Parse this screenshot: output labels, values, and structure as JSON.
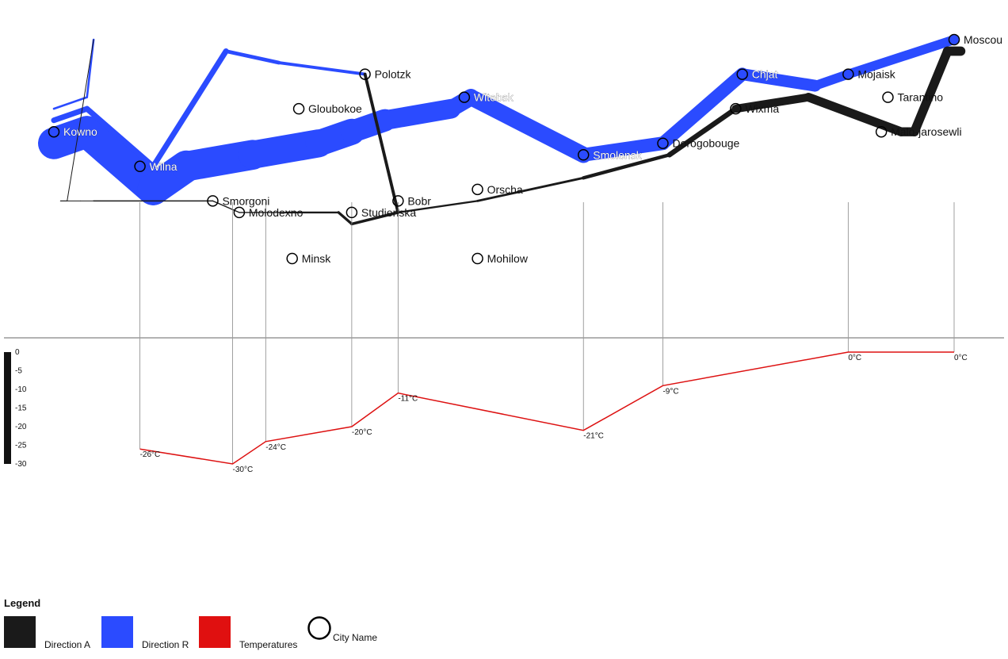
{
  "chart_data": {
    "type": "line",
    "cities": [
      {
        "name": "Kowno",
        "lon": 24.0,
        "lat": 55.0
      },
      {
        "name": "Wilna",
        "lon": 25.3,
        "lat": 54.7
      },
      {
        "name": "Smorgoni",
        "lon": 26.4,
        "lat": 54.4
      },
      {
        "name": "Molodexno",
        "lon": 26.8,
        "lat": 54.3
      },
      {
        "name": "Gloubokoe",
        "lon": 27.7,
        "lat": 55.2
      },
      {
        "name": "Minsk",
        "lon": 27.6,
        "lat": 53.9
      },
      {
        "name": "Studienska",
        "lon": 28.5,
        "lat": 54.3
      },
      {
        "name": "Polotzk",
        "lon": 28.7,
        "lat": 55.5
      },
      {
        "name": "Bobr",
        "lon": 29.2,
        "lat": 54.4
      },
      {
        "name": "Witebsk",
        "lon": 30.2,
        "lat": 55.3
      },
      {
        "name": "Orscha",
        "lon": 30.4,
        "lat": 54.5
      },
      {
        "name": "Mohilow",
        "lon": 30.4,
        "lat": 53.9
      },
      {
        "name": "Smolensk",
        "lon": 32.0,
        "lat": 54.8
      },
      {
        "name": "Dorogobouge",
        "lon": 33.2,
        "lat": 54.9
      },
      {
        "name": "Wixma",
        "lon": 34.3,
        "lat": 55.2
      },
      {
        "name": "Chjat",
        "lon": 34.4,
        "lat": 55.5
      },
      {
        "name": "Mojaisk",
        "lon": 36.0,
        "lat": 55.5
      },
      {
        "name": "Moscou",
        "lon": 37.6,
        "lat": 55.8
      },
      {
        "name": "Tarantino",
        "lon": 36.6,
        "lat": 55.3
      },
      {
        "name": "Malo-jarosewli",
        "lon": 36.5,
        "lat": 55.0
      }
    ],
    "troops": [
      {
        "direction": "R",
        "path": [
          {
            "lon": 24.0,
            "lat": 54.9,
            "size": 340000
          },
          {
            "lon": 24.5,
            "lat": 55.0,
            "size": 340000
          },
          {
            "lon": 25.5,
            "lat": 54.5,
            "size": 340000
          },
          {
            "lon": 26.0,
            "lat": 54.7,
            "size": 320000
          },
          {
            "lon": 27.0,
            "lat": 54.8,
            "size": 300000
          },
          {
            "lon": 28.0,
            "lat": 54.9,
            "size": 280000
          },
          {
            "lon": 28.5,
            "lat": 55.0,
            "size": 240000
          },
          {
            "lon": 29.0,
            "lat": 55.1,
            "size": 210000
          },
          {
            "lon": 30.0,
            "lat": 55.2,
            "size": 180000
          },
          {
            "lon": 30.3,
            "lat": 55.3,
            "size": 175000
          },
          {
            "lon": 32.0,
            "lat": 54.8,
            "size": 145000
          },
          {
            "lon": 33.2,
            "lat": 54.9,
            "size": 140000
          },
          {
            "lon": 34.4,
            "lat": 55.5,
            "size": 127100
          },
          {
            "lon": 35.5,
            "lat": 55.4,
            "size": 100000
          },
          {
            "lon": 36.0,
            "lat": 55.5,
            "size": 100000
          },
          {
            "lon": 37.6,
            "lat": 55.8,
            "size": 100000
          }
        ]
      },
      {
        "direction": "A",
        "path": [
          {
            "lon": 37.7,
            "lat": 55.7,
            "size": 100000
          },
          {
            "lon": 37.5,
            "lat": 55.7,
            "size": 98000
          },
          {
            "lon": 37.0,
            "lat": 55.0,
            "size": 97000
          },
          {
            "lon": 36.8,
            "lat": 55.0,
            "size": 96000
          },
          {
            "lon": 35.4,
            "lat": 55.3,
            "size": 87000
          },
          {
            "lon": 34.3,
            "lat": 55.2,
            "size": 55000
          },
          {
            "lon": 33.3,
            "lat": 54.8,
            "size": 37000
          },
          {
            "lon": 32.0,
            "lat": 54.6,
            "size": 24000
          },
          {
            "lon": 30.4,
            "lat": 54.4,
            "size": 20000
          },
          {
            "lon": 29.2,
            "lat": 54.3,
            "size": 20000
          },
          {
            "lon": 28.5,
            "lat": 54.2,
            "size": 20000
          },
          {
            "lon": 28.3,
            "lat": 54.3,
            "size": 20000
          },
          {
            "lon": 27.5,
            "lat": 54.3,
            "size": 12000
          },
          {
            "lon": 26.8,
            "lat": 54.3,
            "size": 12000
          },
          {
            "lon": 26.4,
            "lat": 54.4,
            "size": 12000
          },
          {
            "lon": 24.6,
            "lat": 54.4,
            "size": 8000
          },
          {
            "lon": 24.4,
            "lat": 54.4,
            "size": 4000
          },
          {
            "lon": 24.2,
            "lat": 54.4,
            "size": 4000
          },
          {
            "lon": 24.1,
            "lat": 54.4,
            "size": 4000
          }
        ]
      },
      {
        "direction": "R",
        "path": [
          {
            "lon": 24.0,
            "lat": 55.1,
            "size": 60000
          },
          {
            "lon": 24.5,
            "lat": 55.2,
            "size": 60000
          },
          {
            "lon": 25.5,
            "lat": 54.7,
            "size": 60000
          },
          {
            "lon": 26.6,
            "lat": 55.7,
            "size": 40000
          },
          {
            "lon": 27.4,
            "lat": 55.6,
            "size": 33000
          },
          {
            "lon": 28.7,
            "lat": 55.5,
            "size": 33000
          }
        ]
      },
      {
        "direction": "A",
        "path": [
          {
            "lon": 28.7,
            "lat": 55.5,
            "size": 33000
          },
          {
            "lon": 29.2,
            "lat": 54.3,
            "size": 30000
          },
          {
            "lon": 28.5,
            "lat": 54.2,
            "size": 28000
          },
          {
            "lon": 28.3,
            "lat": 54.3,
            "size": 28000
          }
        ]
      },
      {
        "direction": "R",
        "path": [
          {
            "lon": 24.0,
            "lat": 55.2,
            "size": 22000
          },
          {
            "lon": 24.5,
            "lat": 55.3,
            "size": 22000
          },
          {
            "lon": 24.6,
            "lat": 55.8,
            "size": 6000
          }
        ]
      },
      {
        "direction": "A",
        "path": [
          {
            "lon": 24.6,
            "lat": 55.8,
            "size": 6000
          },
          {
            "lon": 24.2,
            "lat": 54.4,
            "size": 6000
          },
          {
            "lon": 24.1,
            "lat": 54.4,
            "size": 6000
          }
        ]
      }
    ],
    "temperatures": [
      {
        "lon": 37.6,
        "temp": 0,
        "label": "0°C"
      },
      {
        "lon": 36.0,
        "temp": 0,
        "label": "0°C"
      },
      {
        "lon": 33.2,
        "temp": -9,
        "label": "-9°C"
      },
      {
        "lon": 32.0,
        "temp": -21,
        "label": "-21°C"
      },
      {
        "lon": 29.2,
        "temp": -11,
        "label": "-11°C"
      },
      {
        "lon": 28.5,
        "temp": -20,
        "label": "-20°C"
      },
      {
        "lon": 27.2,
        "temp": -24,
        "label": "-24°C"
      },
      {
        "lon": 26.7,
        "temp": -30,
        "label": "-30°C"
      },
      {
        "lon": 25.3,
        "temp": -26,
        "label": "-26°C"
      }
    ],
    "temp_axis": {
      "ticks": [
        "0",
        "-5",
        "-10",
        "-15",
        "-20",
        "-25",
        "-30"
      ],
      "range": [
        -30,
        0
      ]
    },
    "lon_range": [
      24.0,
      37.6
    ],
    "lat_range": [
      53.9,
      55.8
    ],
    "legend": {
      "title": "Legend",
      "items": [
        {
          "label": "Direction A",
          "color": "#1a1a1a"
        },
        {
          "label": "Direction R",
          "color": "#2b4bff"
        },
        {
          "label": "Temperatures",
          "color": "#e01010"
        },
        {
          "label": "City Name",
          "shape": "circle"
        }
      ]
    },
    "colors": {
      "advance": "#2b4bff",
      "retreat": "#1a1a1a",
      "temperature": "#dd1111"
    }
  }
}
